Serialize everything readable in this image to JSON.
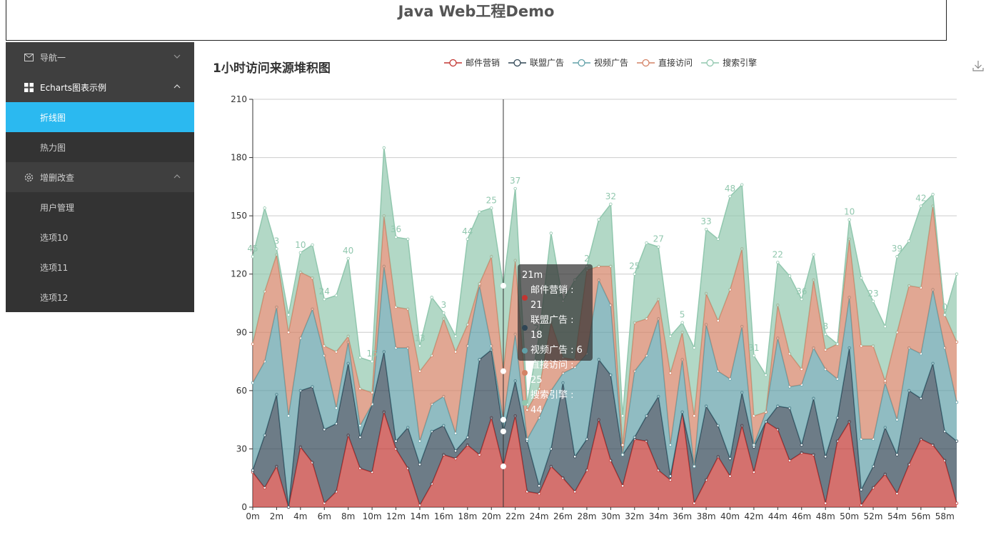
{
  "header": {
    "title": "Java Web工程Demo"
  },
  "sidebar": {
    "nav1": {
      "label": "导航一",
      "icon": "mail-icon"
    },
    "charts": {
      "label": "Echarts图表示例",
      "icon": "grid-icon",
      "items": [
        {
          "label": "折线图"
        },
        {
          "label": "热力图"
        }
      ]
    },
    "crud": {
      "label": "增删改查",
      "icon": "gear-icon",
      "items": [
        {
          "label": "用户管理"
        },
        {
          "label": "选项10"
        },
        {
          "label": "选项11"
        },
        {
          "label": "选项12"
        }
      ]
    }
  },
  "chart": {
    "title": "1小时访问来源堆积图",
    "tooltip": {
      "header": "21m",
      "rows": [
        {
          "name": "邮件营销",
          "value": "21",
          "color": "#c23531"
        },
        {
          "name": "联盟广告",
          "value": "18",
          "color": "#2f4554"
        },
        {
          "name": "视频广告",
          "value": "6",
          "color": "#61a0a8"
        },
        {
          "name": "直接访问",
          "value": "25",
          "color": "#d48265"
        },
        {
          "name": "搜索引擎",
          "value": "44",
          "color": "#91c7ae"
        }
      ]
    }
  },
  "chart_data": {
    "type": "area",
    "title": "1小时访问来源堆积图",
    "stacked": true,
    "legend_position": "top",
    "x": [
      "0m",
      "1m",
      "2m",
      "3m",
      "4m",
      "5m",
      "6m",
      "7m",
      "8m",
      "9m",
      "10m",
      "11m",
      "12m",
      "13m",
      "14m",
      "15m",
      "16m",
      "17m",
      "18m",
      "19m",
      "20m",
      "21m",
      "22m",
      "23m",
      "24m",
      "25m",
      "26m",
      "27m",
      "28m",
      "29m",
      "30m",
      "31m",
      "32m",
      "33m",
      "34m",
      "35m",
      "36m",
      "37m",
      "38m",
      "39m",
      "40m",
      "41m",
      "42m",
      "43m",
      "44m",
      "45m",
      "46m",
      "47m",
      "48m",
      "49m",
      "50m",
      "51m",
      "52m",
      "53m",
      "54m",
      "55m",
      "56m",
      "57m",
      "58m",
      "59m"
    ],
    "x_tick_labels": [
      "0m",
      "2m",
      "4m",
      "6m",
      "8m",
      "10m",
      "12m",
      "14m",
      "16m",
      "18m",
      "20m",
      "22m",
      "24m",
      "26m",
      "28m",
      "30m",
      "32m",
      "34m",
      "36m",
      "38m",
      "40m",
      "42m",
      "44m",
      "46m",
      "48m",
      "50m",
      "52m",
      "54m",
      "56m",
      "58m"
    ],
    "y_ticks": [
      0,
      30,
      60,
      90,
      120,
      150,
      180,
      210
    ],
    "ylim": [
      0,
      210
    ],
    "grid": true,
    "hover_index": 21,
    "series": [
      {
        "name": "邮件营销",
        "color": "#c23531",
        "values": [
          18,
          10,
          21,
          0,
          31,
          23,
          2,
          8,
          37,
          20,
          18,
          49,
          30,
          20,
          1,
          12,
          27,
          25,
          32,
          27,
          46,
          21,
          47,
          8,
          7,
          21,
          15,
          8,
          19,
          45,
          24,
          11,
          35,
          34,
          19,
          14,
          49,
          2,
          14,
          26,
          16,
          42,
          18,
          44,
          40,
          24,
          28,
          27,
          2,
          34,
          44,
          1,
          10,
          17,
          7,
          22,
          35,
          32,
          24,
          2
        ]
      },
      {
        "name": "联盟广告",
        "color": "#2f4554",
        "values": [
          1,
          27,
          37,
          0,
          29,
          39,
          38,
          35,
          37,
          16,
          35,
          31,
          4,
          21,
          21,
          27,
          15,
          4,
          4,
          49,
          35,
          18,
          18,
          26,
          4,
          9,
          49,
          18,
          16,
          31,
          44,
          16,
          1,
          13,
          38,
          2,
          0,
          19,
          38,
          16,
          9,
          17,
          13,
          0,
          12,
          27,
          4,
          29,
          24,
          12,
          38,
          8,
          11,
          24,
          20,
          38,
          21,
          42,
          15,
          32
        ]
      },
      {
        "name": "视频广告",
        "color": "#61a0a8",
        "values": [
          45,
          38,
          45,
          47,
          27,
          40,
          38,
          8,
          11,
          6,
          0,
          44,
          48,
          41,
          12,
          14,
          15,
          9,
          47,
          38,
          2,
          6,
          24,
          1,
          35,
          30,
          5,
          46,
          44,
          41,
          36,
          0,
          34,
          31,
          40,
          16,
          27,
          0,
          42,
          28,
          41,
          34,
          1,
          5,
          35,
          11,
          31,
          26,
          45,
          20,
          26,
          26,
          14,
          23,
          18,
          22,
          23,
          38,
          43,
          20
        ]
      },
      {
        "name": "直接访问",
        "color": "#d48265",
        "values": [
          20,
          36,
          27,
          43,
          34,
          16,
          5,
          29,
          3,
          19,
          6,
          26,
          21,
          20,
          36,
          25,
          40,
          42,
          11,
          1,
          46,
          25,
          38,
          15,
          15,
          35,
          8,
          4,
          43,
          7,
          20,
          5,
          25,
          19,
          10,
          37,
          14,
          26,
          16,
          26,
          46,
          40,
          15,
          0,
          17,
          17,
          8,
          35,
          10,
          18,
          30,
          48,
          48,
          1,
          45,
          32,
          34,
          43,
          17,
          31
        ]
      },
      {
        "name": "搜索引擎",
        "color": "#91c7ae",
        "values": [
          45,
          43,
          3,
          9,
          10,
          17,
          24,
          29,
          40,
          16,
          16,
          35,
          36,
          36,
          13,
          30,
          3,
          8,
          44,
          37,
          25,
          44,
          37,
          3,
          27,
          46,
          29,
          41,
          2,
          24,
          32,
          15,
          25,
          39,
          27,
          19,
          5,
          35,
          33,
          42,
          48,
          33,
          31,
          19,
          22,
          40,
          36,
          13,
          8,
          0,
          10,
          35,
          23,
          28,
          39,
          23,
          42,
          6,
          0,
          35
        ]
      }
    ],
    "data_labels_series": "搜索引擎"
  }
}
